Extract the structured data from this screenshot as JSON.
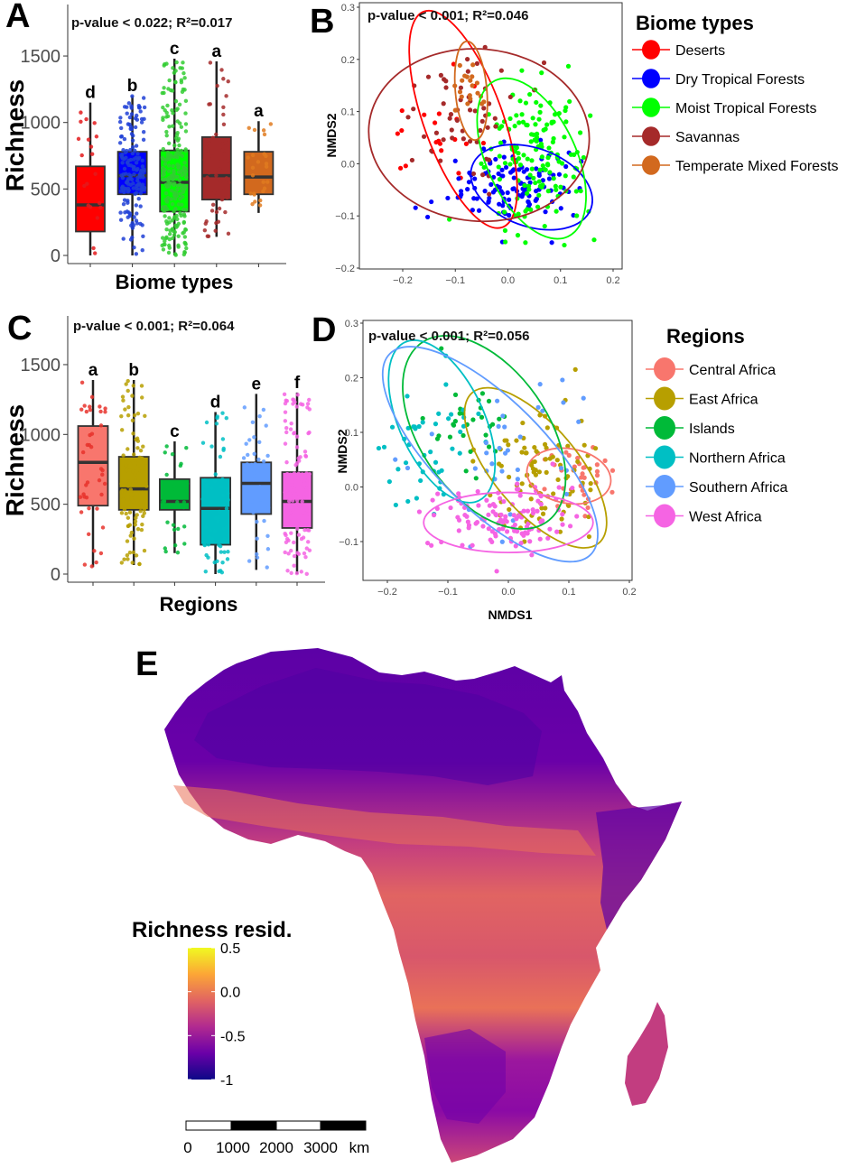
{
  "chart_data": [
    {
      "panel": "A",
      "type": "box",
      "title": "",
      "annotation": "p-value < 0.022; R²=0.017",
      "xlabel": "Biome types",
      "ylabel": "Richness",
      "ylim": [
        0,
        1700
      ],
      "yticks": [
        0,
        500,
        1000,
        1500
      ],
      "categories": [
        "Deserts",
        "Dry Tropical Forests",
        "Moist Tropical Forests",
        "Savannas",
        "Temperate Mixed Forests"
      ],
      "colors": [
        "#ff0000",
        "#0000ff",
        "#00ff00",
        "#a52a2a",
        "#d2691e"
      ],
      "point_colors": [
        "#e31a1c",
        "#1f3fd6",
        "#33cc33",
        "#a52a2a",
        "#e07b20"
      ],
      "significance": [
        "d",
        "b",
        "c",
        "a",
        "a"
      ],
      "boxes": [
        {
          "min": 0,
          "q1": 180,
          "median": 380,
          "q3": 670,
          "max": 1150
        },
        {
          "min": 0,
          "q1": 460,
          "median": 600,
          "q3": 780,
          "max": 1200
        },
        {
          "min": 0,
          "q1": 330,
          "median": 550,
          "q3": 790,
          "max": 1480
        },
        {
          "min": 140,
          "q1": 420,
          "median": 600,
          "q3": 890,
          "max": 1460
        },
        {
          "min": 320,
          "q1": 460,
          "median": 590,
          "q3": 780,
          "max": 1010
        }
      ],
      "n_points": [
        20,
        160,
        230,
        60,
        25
      ]
    },
    {
      "panel": "B",
      "type": "scatter",
      "annotation": "p-value < 0.001; R²=0.046",
      "xlabel": "",
      "ylabel": "NMDS2",
      "xlim": [
        -0.27,
        0.22
      ],
      "ylim": [
        -0.205,
        0.305
      ],
      "xticks": [
        -0.2,
        -0.1,
        0.0,
        0.1,
        0.2
      ],
      "yticks": [
        -0.2,
        -0.1,
        0.0,
        0.1,
        0.2,
        0.3
      ],
      "legend": {
        "title": "Biome types",
        "position": "right",
        "items": [
          "Deserts",
          "Dry Tropical Forests",
          "Moist Tropical Forests",
          "Savannas",
          "Temperate Mixed Forests"
        ],
        "colors": [
          "#ff0000",
          "#0000ff",
          "#00ff00",
          "#a52a2a",
          "#d2691e"
        ]
      },
      "ellipses": [
        {
          "group": "Deserts",
          "cx": -0.085,
          "cy": 0.085,
          "rx": 0.075,
          "ry": 0.22,
          "angle": 20
        },
        {
          "group": "Dry Tropical Forests",
          "cx": 0.045,
          "cy": -0.045,
          "rx": 0.12,
          "ry": 0.075,
          "angle": -20
        },
        {
          "group": "Moist Tropical Forests",
          "cx": 0.045,
          "cy": 0.01,
          "rx": 0.085,
          "ry": 0.165,
          "angle": 25
        },
        {
          "group": "Savannas",
          "cx": -0.055,
          "cy": 0.055,
          "rx": 0.21,
          "ry": 0.165,
          "angle": -5
        },
        {
          "group": "Temperate Mixed Forests",
          "cx": -0.07,
          "cy": 0.14,
          "rx": 0.03,
          "ry": 0.095,
          "angle": 5
        }
      ],
      "point_clouds": [
        {
          "group": "Deserts",
          "cx": -0.13,
          "cy": 0.06,
          "sx": 0.04,
          "sy": 0.07,
          "n": 20
        },
        {
          "group": "Dry Tropical Forests",
          "cx": 0.01,
          "cy": -0.04,
          "sx": 0.055,
          "sy": 0.04,
          "n": 120
        },
        {
          "group": "Moist Tropical Forests",
          "cx": 0.05,
          "cy": 0.02,
          "sx": 0.05,
          "sy": 0.07,
          "n": 150
        },
        {
          "group": "Savannas",
          "cx": -0.08,
          "cy": 0.08,
          "sx": 0.06,
          "sy": 0.06,
          "n": 55
        },
        {
          "group": "Temperate Mixed Forests",
          "cx": -0.07,
          "cy": 0.13,
          "sx": 0.015,
          "sy": 0.035,
          "n": 20
        }
      ]
    },
    {
      "panel": "C",
      "type": "box",
      "annotation": "p-value < 0.001; R²=0.064",
      "xlabel": "Regions",
      "ylabel": "Richness",
      "ylim": [
        0,
        1700
      ],
      "yticks": [
        0,
        500,
        1000,
        1500
      ],
      "categories": [
        "Central Africa",
        "East Africa",
        "Islands",
        "Northern Africa",
        "Southern Africa",
        "West Africa"
      ],
      "colors": [
        "#f8766d",
        "#b79f00",
        "#00ba38",
        "#00bfc4",
        "#619cff",
        "#f564e3"
      ],
      "point_colors": [
        "#e8322b",
        "#b79f00",
        "#00ba38",
        "#00bfc4",
        "#619cff",
        "#f564e3"
      ],
      "significance": [
        "a",
        "b",
        "c",
        "d",
        "e",
        "f"
      ],
      "boxes": [
        {
          "min": 50,
          "q1": 490,
          "median": 800,
          "q3": 1060,
          "max": 1390
        },
        {
          "min": 65,
          "q1": 460,
          "median": 610,
          "q3": 840,
          "max": 1390
        },
        {
          "min": 150,
          "q1": 460,
          "median": 520,
          "q3": 680,
          "max": 950
        },
        {
          "min": 0,
          "q1": 210,
          "median": 470,
          "q3": 690,
          "max": 1160
        },
        {
          "min": 30,
          "q1": 430,
          "median": 650,
          "q3": 800,
          "max": 1290
        },
        {
          "min": 0,
          "q1": 330,
          "median": 520,
          "q3": 730,
          "max": 1300
        }
      ],
      "n_points": [
        40,
        110,
        30,
        60,
        40,
        130
      ]
    },
    {
      "panel": "D",
      "type": "scatter",
      "annotation": "p-value < 0.001; R²=0.056",
      "xlabel": "NMDS1",
      "ylabel": "NMDS2",
      "xlim": [
        -0.235,
        0.205
      ],
      "ylim": [
        -0.17,
        0.305
      ],
      "xticks": [
        -0.2,
        -0.1,
        0.0,
        0.1,
        0.2
      ],
      "yticks": [
        -0.1,
        0.0,
        0.1,
        0.2,
        0.3
      ],
      "legend": {
        "title": "Regions",
        "position": "right",
        "items": [
          "Central Africa",
          "East Africa",
          "Islands",
          "Northern Africa",
          "Southern Africa",
          "West Africa"
        ],
        "colors": [
          "#f8766d",
          "#b79f00",
          "#00ba38",
          "#00bfc4",
          "#619cff",
          "#f564e3"
        ]
      },
      "ellipses": [
        {
          "group": "Central Africa",
          "cx": 0.1,
          "cy": 0.02,
          "rx": 0.07,
          "ry": 0.05,
          "angle": -10
        },
        {
          "group": "East Africa",
          "cx": 0.045,
          "cy": 0.035,
          "rx": 0.07,
          "ry": 0.18,
          "angle": 40
        },
        {
          "group": "Islands",
          "cx": -0.04,
          "cy": 0.1,
          "rx": 0.105,
          "ry": 0.2,
          "angle": 35
        },
        {
          "group": "Northern Africa",
          "cx": -0.11,
          "cy": 0.12,
          "rx": 0.07,
          "ry": 0.16,
          "angle": 25
        },
        {
          "group": "Southern Africa",
          "cx": -0.03,
          "cy": 0.06,
          "rx": 0.09,
          "ry": 0.26,
          "angle": 45
        },
        {
          "group": "West Africa",
          "cx": 0.0,
          "cy": -0.065,
          "rx": 0.14,
          "ry": 0.055,
          "angle": 0
        }
      ],
      "point_clouds": [
        {
          "group": "Central Africa",
          "cx": 0.11,
          "cy": 0.02,
          "sx": 0.025,
          "sy": 0.035,
          "n": 35
        },
        {
          "group": "East Africa",
          "cx": 0.05,
          "cy": 0.02,
          "sx": 0.05,
          "sy": 0.06,
          "n": 95
        },
        {
          "group": "Islands",
          "cx": -0.06,
          "cy": 0.12,
          "sx": 0.04,
          "sy": 0.04,
          "n": 30
        },
        {
          "group": "Northern Africa",
          "cx": -0.12,
          "cy": 0.09,
          "sx": 0.04,
          "sy": 0.06,
          "n": 45
        },
        {
          "group": "Southern Africa",
          "cx": -0.02,
          "cy": 0.07,
          "sx": 0.07,
          "sy": 0.07,
          "n": 35
        },
        {
          "group": "West Africa",
          "cx": 0.0,
          "cy": -0.06,
          "sx": 0.055,
          "sy": 0.03,
          "n": 120
        }
      ]
    },
    {
      "panel": "E",
      "type": "heatmap",
      "title": "",
      "description": "Map of Africa coloured by richness residuals",
      "colorbar": {
        "title": "Richness resid.",
        "range": [
          -1,
          0.5
        ],
        "ticks": [
          0.5,
          0.0,
          -0.5,
          -1
        ],
        "tick_labels": [
          "0.5",
          "0.0",
          "-0.5",
          "-1"
        ],
        "colormap": [
          "#0d0887",
          "#6a00a8",
          "#b12a90",
          "#e16462",
          "#fca636",
          "#f0f921"
        ]
      },
      "scalebar": {
        "labels": [
          "0",
          "1000",
          "2000",
          "3000",
          "km"
        ]
      }
    }
  ],
  "panels": {
    "letters": [
      "A",
      "B",
      "C",
      "D",
      "E"
    ]
  }
}
